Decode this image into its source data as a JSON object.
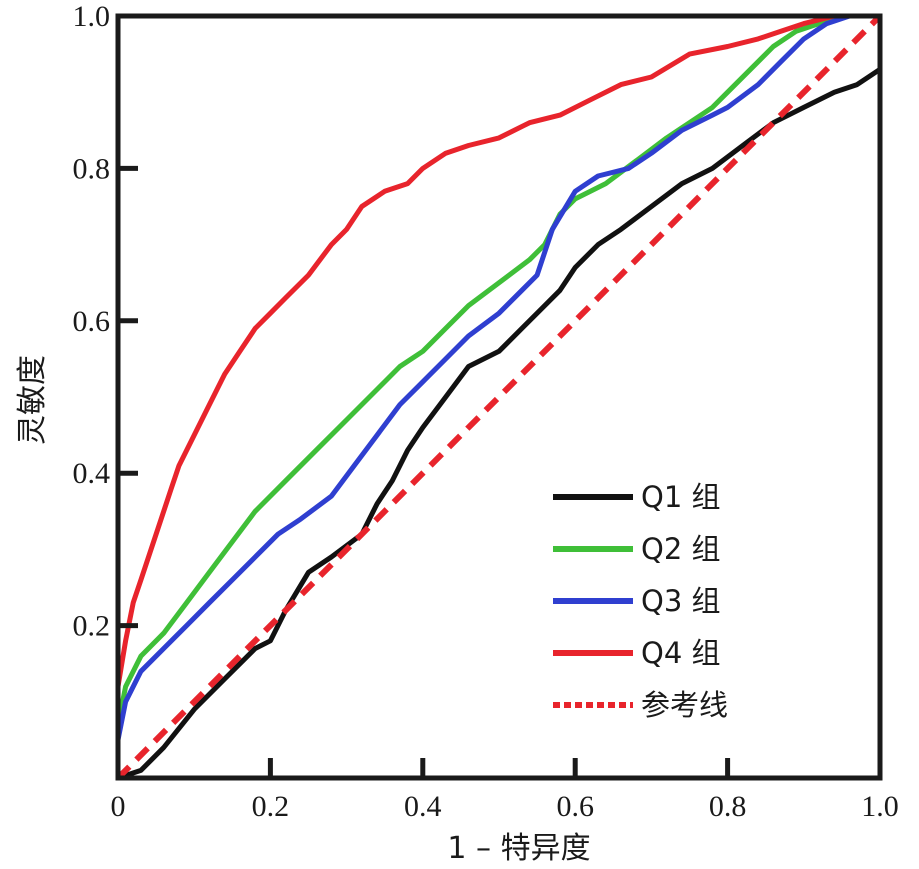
{
  "chart_data": {
    "type": "line",
    "title": "",
    "xlabel": "1 – 特异度",
    "ylabel": "灵敏度",
    "xlim": [
      0,
      1
    ],
    "ylim": [
      0,
      1
    ],
    "x_ticks": [
      0,
      0.2,
      0.4,
      0.6,
      0.8,
      1.0
    ],
    "x_tick_labels": [
      "0",
      "0.2",
      "0.4",
      "0.6",
      "0.8",
      "1.0"
    ],
    "y_ticks": [
      0.2,
      0.4,
      0.6,
      0.8,
      1.0
    ],
    "y_tick_labels": [
      "0.2",
      "0.4",
      "0.6",
      "0.8",
      "1.0"
    ],
    "legend_position": "bottom-right",
    "series": [
      {
        "name": "Q1 组",
        "color": "#111111",
        "style": "solid",
        "x": [
          0,
          0.03,
          0.06,
          0.1,
          0.14,
          0.18,
          0.2,
          0.22,
          0.25,
          0.28,
          0.32,
          0.34,
          0.36,
          0.38,
          0.4,
          0.43,
          0.46,
          0.5,
          0.53,
          0.56,
          0.58,
          0.6,
          0.63,
          0.66,
          0.7,
          0.74,
          0.78,
          0.82,
          0.86,
          0.9,
          0.94,
          0.97,
          1.0
        ],
        "y": [
          0,
          0.01,
          0.04,
          0.09,
          0.13,
          0.17,
          0.18,
          0.22,
          0.27,
          0.29,
          0.32,
          0.36,
          0.39,
          0.43,
          0.46,
          0.5,
          0.54,
          0.56,
          0.59,
          0.62,
          0.64,
          0.67,
          0.7,
          0.72,
          0.75,
          0.78,
          0.8,
          0.83,
          0.86,
          0.88,
          0.9,
          0.91,
          0.93
        ]
      },
      {
        "name": "Q2 组",
        "color": "#3fbf38",
        "style": "solid",
        "x": [
          0,
          0.01,
          0.03,
          0.06,
          0.09,
          0.12,
          0.15,
          0.18,
          0.22,
          0.26,
          0.3,
          0.34,
          0.37,
          0.4,
          0.43,
          0.46,
          0.5,
          0.54,
          0.56,
          0.58,
          0.6,
          0.64,
          0.68,
          0.72,
          0.75,
          0.78,
          0.8,
          0.83,
          0.86,
          0.89,
          0.92,
          0.95,
          1.0
        ],
        "y": [
          0.07,
          0.12,
          0.16,
          0.19,
          0.23,
          0.27,
          0.31,
          0.35,
          0.39,
          0.43,
          0.47,
          0.51,
          0.54,
          0.56,
          0.59,
          0.62,
          0.65,
          0.68,
          0.7,
          0.74,
          0.76,
          0.78,
          0.81,
          0.84,
          0.86,
          0.88,
          0.9,
          0.93,
          0.96,
          0.98,
          0.99,
          1.0,
          1.0
        ]
      },
      {
        "name": "Q3 组",
        "color": "#2f3fd0",
        "style": "solid",
        "x": [
          0,
          0.01,
          0.03,
          0.06,
          0.09,
          0.12,
          0.15,
          0.18,
          0.21,
          0.24,
          0.28,
          0.31,
          0.34,
          0.37,
          0.4,
          0.43,
          0.46,
          0.5,
          0.53,
          0.55,
          0.57,
          0.6,
          0.63,
          0.67,
          0.7,
          0.74,
          0.78,
          0.8,
          0.84,
          0.87,
          0.9,
          0.93,
          0.96,
          1.0
        ],
        "y": [
          0.05,
          0.1,
          0.14,
          0.17,
          0.2,
          0.23,
          0.26,
          0.29,
          0.32,
          0.34,
          0.37,
          0.41,
          0.45,
          0.49,
          0.52,
          0.55,
          0.58,
          0.61,
          0.64,
          0.66,
          0.72,
          0.77,
          0.79,
          0.8,
          0.82,
          0.85,
          0.87,
          0.88,
          0.91,
          0.94,
          0.97,
          0.99,
          1.0,
          1.0
        ]
      },
      {
        "name": "Q4 组",
        "color": "#e8242c",
        "style": "solid",
        "x": [
          0,
          0.01,
          0.02,
          0.03,
          0.05,
          0.07,
          0.08,
          0.1,
          0.12,
          0.14,
          0.16,
          0.18,
          0.2,
          0.22,
          0.25,
          0.28,
          0.3,
          0.32,
          0.35,
          0.38,
          0.4,
          0.43,
          0.46,
          0.5,
          0.54,
          0.58,
          0.62,
          0.66,
          0.7,
          0.75,
          0.8,
          0.84,
          0.87,
          0.9,
          0.94,
          1.0
        ],
        "y": [
          0.12,
          0.18,
          0.23,
          0.26,
          0.32,
          0.38,
          0.41,
          0.45,
          0.49,
          0.53,
          0.56,
          0.59,
          0.61,
          0.63,
          0.66,
          0.7,
          0.72,
          0.75,
          0.77,
          0.78,
          0.8,
          0.82,
          0.83,
          0.84,
          0.86,
          0.87,
          0.89,
          0.91,
          0.92,
          0.95,
          0.96,
          0.97,
          0.98,
          0.99,
          1.0,
          1.0
        ]
      },
      {
        "name": "参考线",
        "color": "#e8242c",
        "style": "dashed",
        "x": [
          0,
          1
        ],
        "y": [
          0,
          1
        ]
      }
    ]
  }
}
